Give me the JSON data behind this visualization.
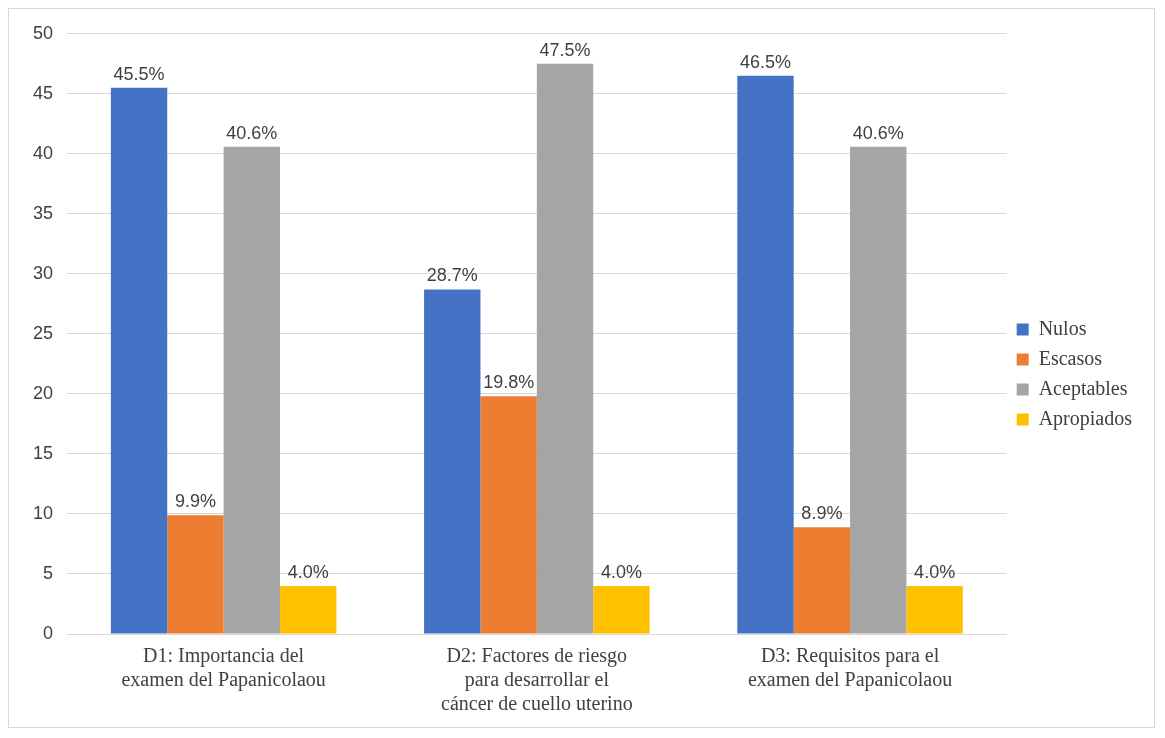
{
  "chart_data": {
    "type": "bar",
    "categories": [
      "D1: Importancia del examen del Papanicolaou",
      "D2: Factores de riesgo para desarrollar el cáncer de cuello uterino",
      "D3: Requisitos para el examen del Papanicolaou"
    ],
    "series": [
      {
        "name": "Nulos",
        "color": "#4472c4",
        "values": [
          45.5,
          28.7,
          46.5
        ],
        "value_labels": [
          "45.5%",
          "28.7%",
          "46.5%"
        ]
      },
      {
        "name": "Escasos",
        "color": "#ed7d31",
        "values": [
          9.9,
          19.8,
          8.9
        ],
        "value_labels": [
          "9.9%",
          "19.8%",
          "8.9%"
        ]
      },
      {
        "name": "Aceptables",
        "color": "#a5a5a5",
        "values": [
          40.6,
          47.5,
          40.6
        ],
        "value_labels": [
          "40.6%",
          "47.5%",
          "40.6%"
        ]
      },
      {
        "name": "Apropiados",
        "color": "#ffc000",
        "values": [
          4.0,
          4.0,
          4.0
        ],
        "value_labels": [
          "4.0%",
          "4.0%",
          "4.0%"
        ]
      }
    ],
    "ylim": [
      0,
      50
    ],
    "yticks": [
      0,
      5,
      10,
      15,
      20,
      25,
      30,
      35,
      40,
      45,
      50
    ],
    "grid": "y",
    "legend": "right"
  }
}
